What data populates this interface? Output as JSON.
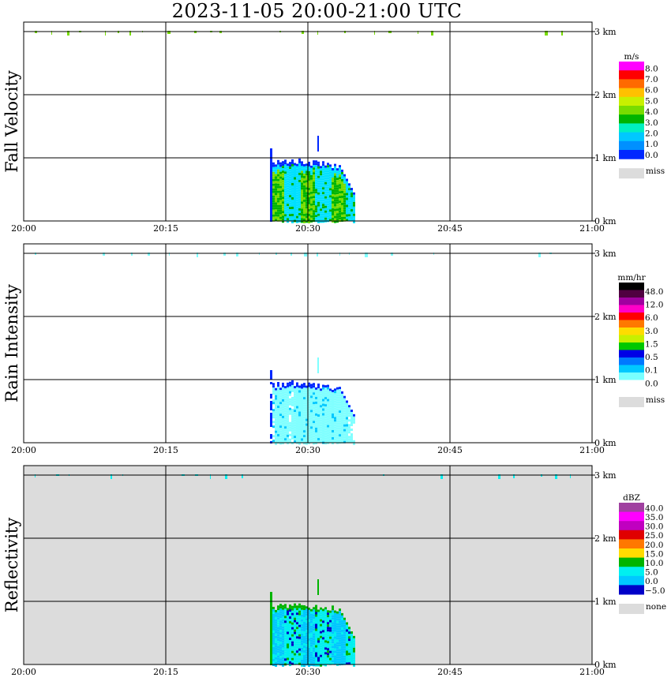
{
  "title": "2023-11-05  20:00-21:00 UTC",
  "x_ticks": [
    "20:00",
    "20:15",
    "20:30",
    "20:45",
    "21:00"
  ],
  "y_ticks": [
    "0 km",
    "1 km",
    "2 km",
    "3 km"
  ],
  "chart_data": [
    {
      "type": "heatmap",
      "ylabel": "Fall Velocity",
      "xlim": [
        "20:00",
        "21:00"
      ],
      "ylim_km": [
        0,
        3
      ],
      "background": "#ffffff",
      "colorbar": {
        "unit": "m/s",
        "labels": [
          "8.0",
          "7.0",
          "6.0",
          "5.0",
          "4.0",
          "3.0",
          "2.0",
          "1.0",
          "0.0"
        ],
        "colors": [
          "#ff00ff",
          "#ff0000",
          "#ff6a00",
          "#ffc000",
          "#c8f000",
          "#78dc00",
          "#00b400",
          "#00f0c0",
          "#00c8ff",
          "#0090ff",
          "#0028ff"
        ],
        "miss_label": "miss",
        "miss_color": "#dcdcdc"
      },
      "echo": {
        "time_range": [
          "20:26",
          "20:35"
        ],
        "top_km": 1.15,
        "dominant_colors": [
          "#00e0ff",
          "#00b400",
          "#78dc00",
          "#0028ff"
        ]
      }
    },
    {
      "type": "heatmap",
      "ylabel": "Rain Intensity",
      "xlim": [
        "20:00",
        "21:00"
      ],
      "ylim_km": [
        0,
        3
      ],
      "background": "#ffffff",
      "colorbar": {
        "unit": "mm/hr",
        "labels": [
          "48.0",
          "12.0",
          "6.0",
          "3.0",
          "1.5",
          "0.5",
          "0.1",
          "0.0"
        ],
        "colors": [
          "#000000",
          "#500040",
          "#a000a0",
          "#ff00c8",
          "#ff0000",
          "#ff7800",
          "#ffdc00",
          "#c8f000",
          "#00c800",
          "#0000e6",
          "#0078ff",
          "#00c8ff",
          "#78ffff",
          "#ffffff"
        ],
        "miss_label": "miss",
        "miss_color": "#dcdcdc"
      },
      "echo": {
        "time_range": [
          "20:26",
          "20:35"
        ],
        "top_km": 1.15,
        "dominant_colors": [
          "#80ffff",
          "#00c8ff",
          "#0028ff"
        ]
      }
    },
    {
      "type": "heatmap",
      "ylabel": "Reflectivity",
      "xlim": [
        "20:00",
        "21:00"
      ],
      "ylim_km": [
        0,
        3
      ],
      "background": "#dcdcdc",
      "colorbar": {
        "unit": "dBZ",
        "labels": [
          "40.0",
          "35.0",
          "30.0",
          "25.0",
          "20.0",
          "15.0",
          "10.0",
          "5.0",
          "0.0",
          "−5.0"
        ],
        "colors": [
          "#a040a0",
          "#ff00ff",
          "#c000c0",
          "#e00000",
          "#ff7800",
          "#ffdc00",
          "#00b400",
          "#00f0f0",
          "#00c8ff",
          "#0000c8"
        ],
        "miss_label": "none",
        "miss_color": "#dcdcdc"
      },
      "echo": {
        "time_range": [
          "20:26",
          "20:35"
        ],
        "top_km": 1.15,
        "dominant_colors": [
          "#00c8ff",
          "#0000c8",
          "#00f0f0",
          "#00b400"
        ]
      }
    }
  ]
}
